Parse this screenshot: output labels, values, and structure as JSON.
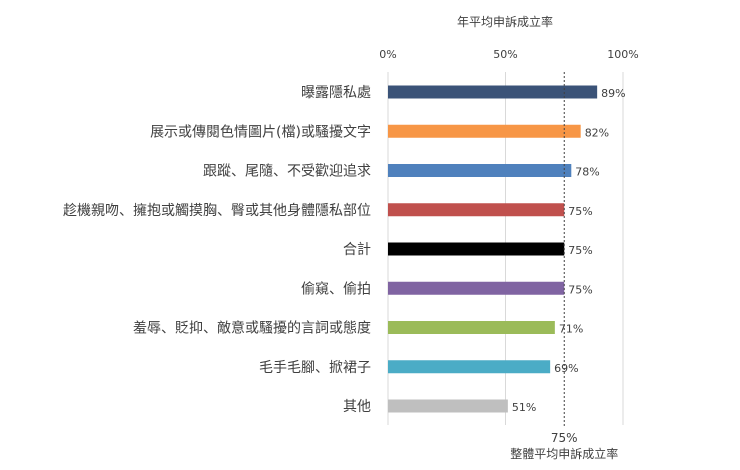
{
  "chart_data": {
    "type": "bar",
    "orientation": "horizontal",
    "title": "年平均申訴成立率",
    "categories": [
      "曝露隱私處",
      "展示或傳閱色情圖片(檔)或騷擾文字",
      "跟蹤、尾隨、不受歡迎追求",
      "趁機親吻、擁抱或觸摸胸、臀或其他身體隱私部位",
      "合計",
      "偷窺、偷拍",
      "羞辱、貶抑、敵意或騷擾的言詞或態度",
      "毛手毛腳、掀裙子",
      "其他"
    ],
    "values": [
      89,
      82,
      78,
      75,
      75,
      75,
      71,
      69,
      51
    ],
    "value_labels": [
      "89%",
      "82%",
      "78%",
      "75%",
      "75%",
      "75%",
      "71%",
      "69%",
      "51%"
    ],
    "colors": [
      "#3b5378",
      "#f79646",
      "#4f81bd",
      "#c0504d",
      "#000000",
      "#8064a2",
      "#9bbb59",
      "#4bacc6",
      "#bfbfbf"
    ],
    "xlim": [
      0,
      100
    ],
    "xticks": [
      0,
      50,
      100
    ],
    "xtick_labels": [
      "0%",
      "50%",
      "100%"
    ],
    "grid": true,
    "reference_line": {
      "value": 75,
      "value_label": "75%",
      "label": "整體平均申訴成立率"
    }
  }
}
